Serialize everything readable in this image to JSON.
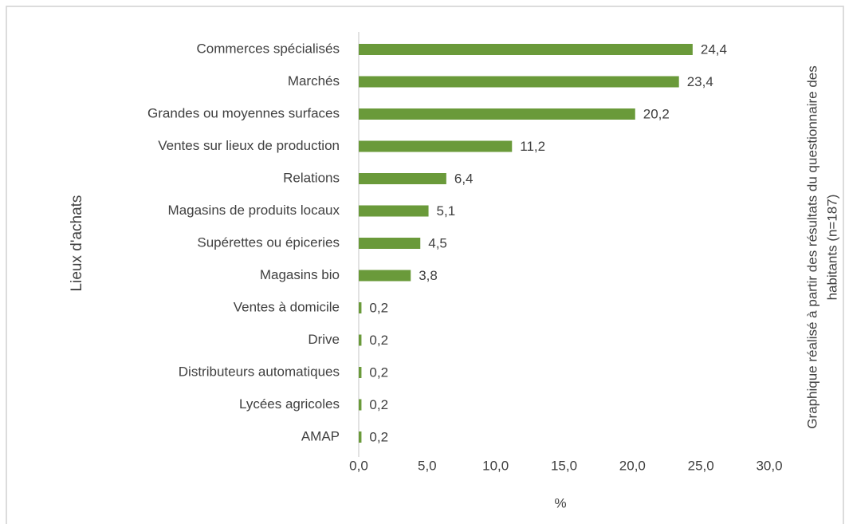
{
  "chart_data": {
    "type": "bar",
    "orientation": "horizontal",
    "categories": [
      "Commerces spécialisés",
      "Marchés",
      "Grandes ou moyennes surfaces",
      "Ventes sur lieux de production",
      "Relations",
      "Magasins de produits locaux",
      "Supérettes ou épiceries",
      "Magasins bio",
      "Ventes à domicile",
      "Drive",
      "Distributeurs automatiques",
      "Lycées agricoles",
      "AMAP"
    ],
    "values": [
      24.4,
      23.4,
      20.2,
      11.2,
      6.4,
      5.1,
      4.5,
      3.8,
      0.2,
      0.2,
      0.2,
      0.2,
      0.2
    ],
    "value_labels": [
      "24,4",
      "23,4",
      "20,2",
      "11,2",
      "6,4",
      "5,1",
      "4,5",
      "3,8",
      "0,2",
      "0,2",
      "0,2",
      "0,2",
      "0,2"
    ],
    "color": "#6a9a3a",
    "xlim": [
      0,
      30
    ],
    "xticks": [
      {
        "value": 0,
        "label": "0,0"
      },
      {
        "value": 5,
        "label": "5,0"
      },
      {
        "value": 10,
        "label": "10,0"
      },
      {
        "value": 15,
        "label": "15,0"
      },
      {
        "value": 20,
        "label": "20,0"
      },
      {
        "value": 25,
        "label": "25,0"
      },
      {
        "value": 30,
        "label": "30,0"
      }
    ],
    "xlabel": "%",
    "ylabel": "Lieux d'achats",
    "annotation": [
      "Graphique réalisé à partir des résultats du questionnaire des",
      "habitants (n=187)"
    ],
    "grid": false
  }
}
